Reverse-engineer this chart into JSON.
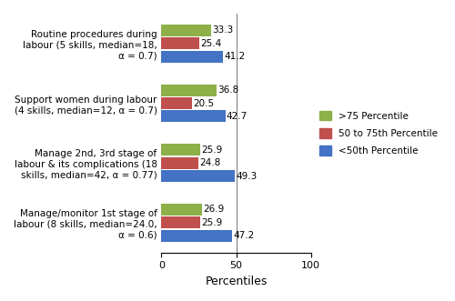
{
  "categories": [
    "Routine procedures during\nlabour (5 skills, median=18,\nα = 0.7)",
    "Support women during labour\n(4 skills, median=12, α = 0.7)",
    "Manage 2nd, 3rd stage of\nlabour & its complications (18\nskills, median=42, α = 0.77)",
    "Manage/monitor 1st stage of\nlabour (8 skills, median=24.0,\nα = 0.6)"
  ],
  "green_values": [
    33.3,
    36.8,
    25.9,
    26.9
  ],
  "red_values": [
    25.4,
    20.5,
    24.8,
    25.9
  ],
  "blue_values": [
    41.2,
    42.7,
    49.3,
    47.2
  ],
  "green_color": "#8DB048",
  "red_color": "#C0504D",
  "blue_color": "#4472C4",
  "legend_labels": [
    ">75 Percentile",
    "50 to 75th Percentile",
    "<50th Percentile"
  ],
  "xlabel": "Percentiles",
  "xlim": [
    0,
    100
  ],
  "xticks": [
    0,
    50,
    100
  ],
  "bar_height": 0.22,
  "background_color": "#ffffff"
}
